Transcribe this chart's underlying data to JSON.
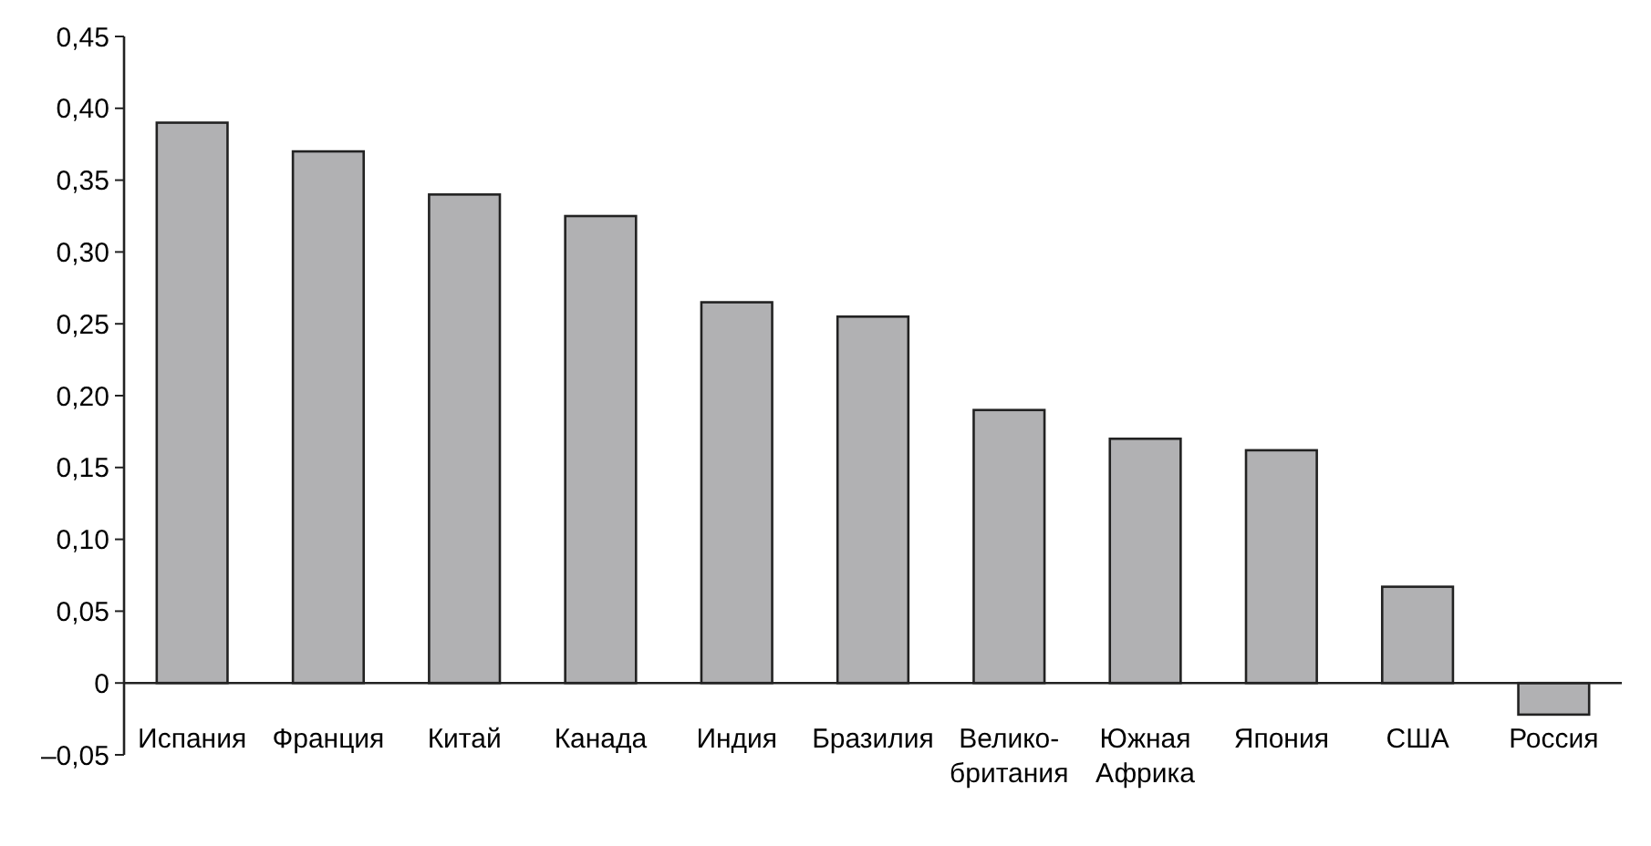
{
  "chart_data": {
    "type": "bar",
    "categories": [
      "Испания",
      "Франция",
      "Китай",
      "Канада",
      "Индия",
      "Бразилия",
      "Велико-\nбритания",
      "Южная\nАфрика",
      "Япония",
      "США",
      "Россия"
    ],
    "values": [
      0.39,
      0.37,
      0.34,
      0.325,
      0.265,
      0.255,
      0.19,
      0.17,
      0.162,
      0.067,
      -0.022
    ],
    "color": "#b1b1b3",
    "ylim": [
      -0.05,
      0.45
    ],
    "yticks": [
      {
        "value": -0.05,
        "label": "–0,05"
      },
      {
        "value": 0,
        "label": "0"
      },
      {
        "value": 0.05,
        "label": "0,05"
      },
      {
        "value": 0.1,
        "label": "0,10"
      },
      {
        "value": 0.15,
        "label": "0,15"
      },
      {
        "value": 0.2,
        "label": "0,20"
      },
      {
        "value": 0.25,
        "label": "0,25"
      },
      {
        "value": 0.3,
        "label": "0,30"
      },
      {
        "value": 0.35,
        "label": "0,35"
      },
      {
        "value": 0.4,
        "label": "0,40"
      },
      {
        "value": 0.45,
        "label": "0,45"
      }
    ],
    "grid": false
  }
}
